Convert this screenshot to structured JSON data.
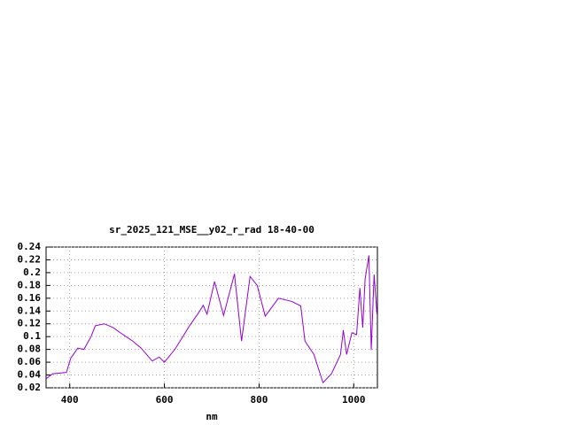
{
  "chart_data": {
    "type": "line",
    "title": "sr_2025_121_MSE__y02_r_rad 18-40-00",
    "x_label": "nm",
    "x": [
      350,
      364,
      393,
      402,
      417,
      430,
      445,
      454,
      473,
      492,
      505,
      533,
      551,
      574,
      589,
      600,
      622,
      639,
      654,
      673,
      682,
      690,
      706,
      725,
      748,
      763,
      781,
      796,
      813,
      841,
      869,
      888,
      897,
      916,
      935,
      953,
      972,
      978,
      985,
      996,
      1006,
      1013,
      1019,
      1024,
      1032,
      1037,
      1043,
      1049
    ],
    "series": [
      {
        "color": "#9400d3",
        "values": [
          0.034,
          0.042,
          0.044,
          0.066,
          0.082,
          0.08,
          0.1,
          0.117,
          0.12,
          0.114,
          0.107,
          0.093,
          0.082,
          0.062,
          0.068,
          0.06,
          0.08,
          0.1,
          0.118,
          0.138,
          0.149,
          0.135,
          0.186,
          0.133,
          0.198,
          0.093,
          0.194,
          0.18,
          0.132,
          0.16,
          0.155,
          0.148,
          0.093,
          0.072,
          0.028,
          0.042,
          0.072,
          0.11,
          0.072,
          0.106,
          0.103,
          0.176,
          0.114,
          0.19,
          0.227,
          0.079,
          0.197,
          0.135
        ]
      }
    ],
    "xlim": [
      350,
      1050
    ],
    "ylim": [
      0.02,
      0.24
    ],
    "xticks": [
      400,
      600,
      800,
      1000
    ],
    "yticks": [
      0.02,
      0.04,
      0.06,
      0.08,
      0.1,
      0.12,
      0.14,
      0.16,
      0.18,
      0.2,
      0.22,
      0.24
    ],
    "grid": true
  }
}
